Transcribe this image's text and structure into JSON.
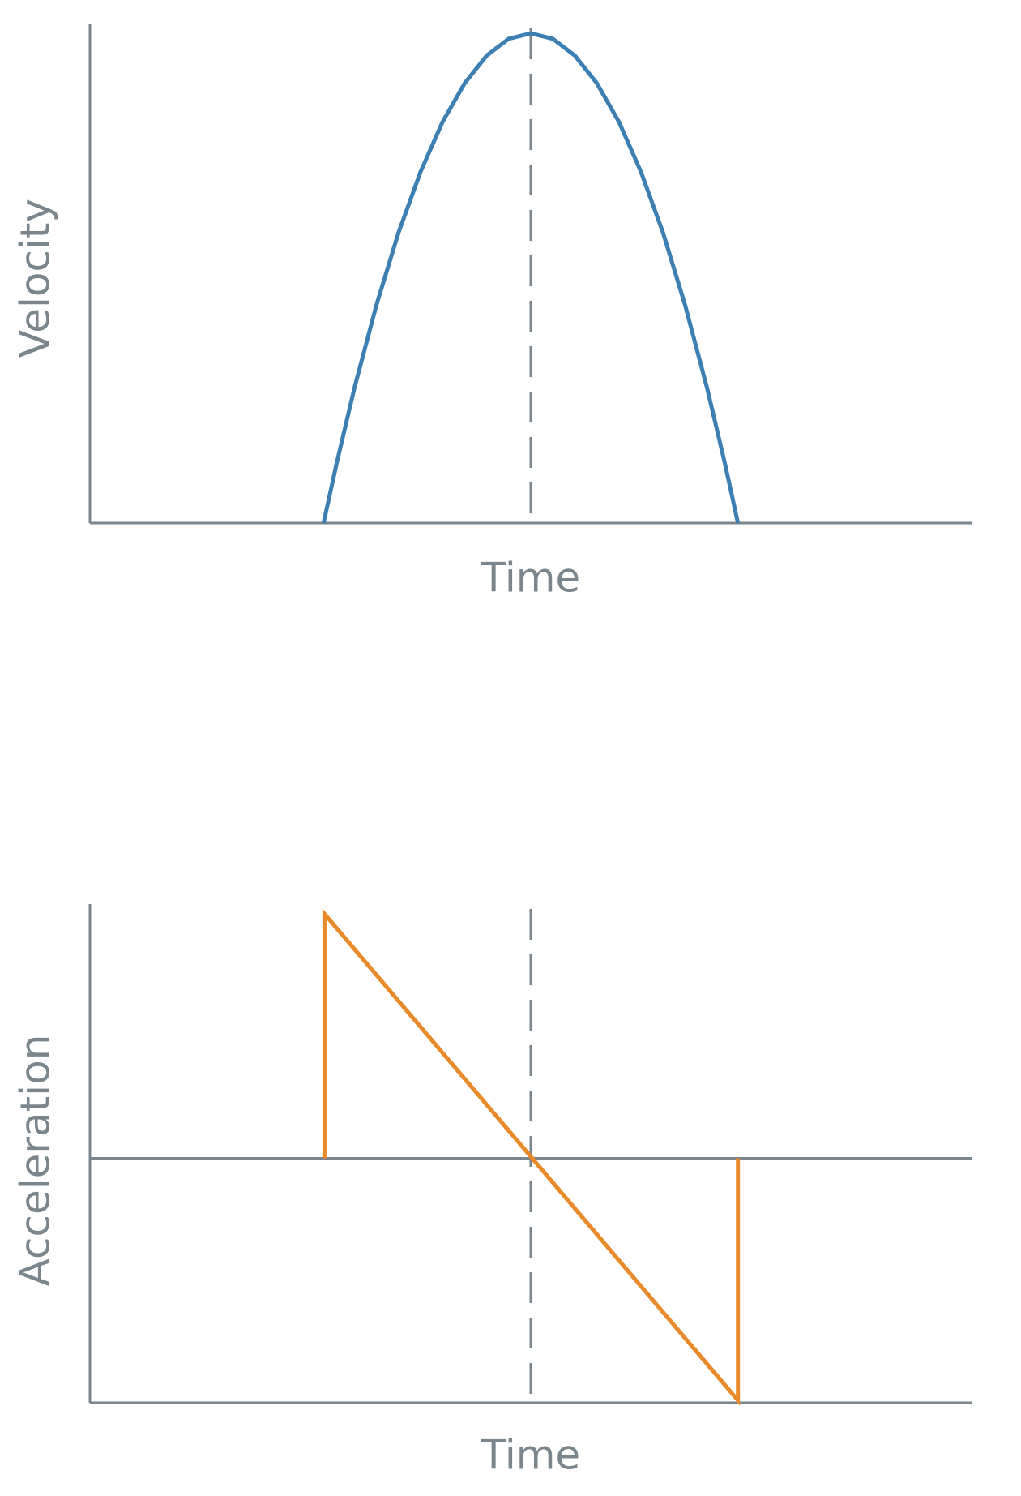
{
  "chart_data": [
    {
      "type": "line",
      "x_label": "Time",
      "y_label": "Velocity",
      "color": "#3d7fb3",
      "x": [
        0.265,
        0.28,
        0.3,
        0.325,
        0.35,
        0.375,
        0.4,
        0.425,
        0.45,
        0.475,
        0.5,
        0.525,
        0.55,
        0.575,
        0.6,
        0.625,
        0.65,
        0.675,
        0.7,
        0.72,
        0.735
      ],
      "values": [
        0,
        0.122,
        0.273,
        0.441,
        0.587,
        0.71,
        0.811,
        0.889,
        0.945,
        0.979,
        0.99,
        0.979,
        0.945,
        0.889,
        0.811,
        0.71,
        0.587,
        0.441,
        0.273,
        0.122,
        0
      ],
      "xlim": [
        0,
        1
      ],
      "ylim": [
        0,
        1
      ],
      "vline": 0.5
    },
    {
      "type": "line",
      "x_label": "Time",
      "y_label": "Acceleration",
      "color": "#e8892a",
      "x": [
        0.266,
        0.266,
        0.735,
        0.735
      ],
      "values": [
        0,
        1.0,
        -0.99,
        0
      ],
      "xlim": [
        0,
        1
      ],
      "ylim": [
        -1,
        1.02
      ],
      "vline": 0.5
    }
  ]
}
